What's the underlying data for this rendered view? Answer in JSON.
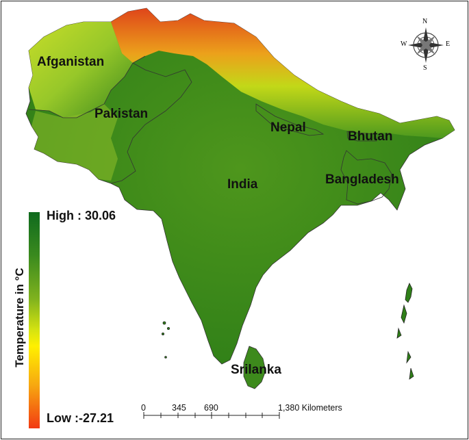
{
  "countries": {
    "afghanistan": "Afganistan",
    "pakistan": "Pakistan",
    "nepal": "Nepal",
    "bhutan": "Bhutan",
    "india": "India",
    "bangladesh": "Bangladesh",
    "srilanka": "Srilanka"
  },
  "legend": {
    "title": "Temperature in °C",
    "high_label": "High : 30.06",
    "low_label": "Low :-27.21",
    "high_value": 30.06,
    "low_value": -27.21,
    "high_color": "#0f6a1e",
    "mid_color": "#fff000",
    "low_color": "#f23a12"
  },
  "compass": {
    "north": "N",
    "south": "S",
    "east": "E",
    "west": "W"
  },
  "scale_bar": {
    "ticks": [
      "0",
      "345",
      "690",
      "1,380 Kilometers"
    ]
  }
}
